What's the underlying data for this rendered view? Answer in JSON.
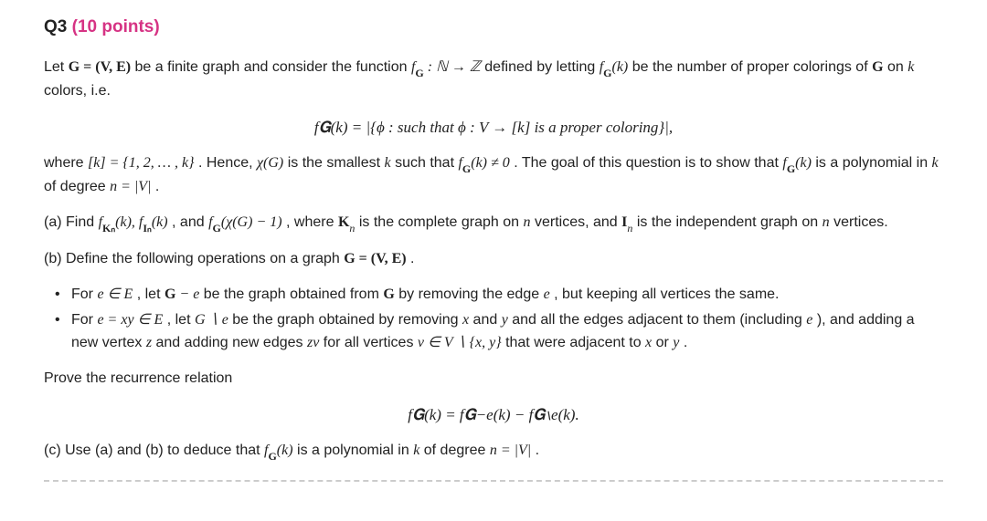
{
  "header": {
    "qnum": "Q3",
    "points": "(10 points)"
  },
  "para1_a": "Let ",
  "para1_math1": "G = (V, E)",
  "para1_b": " be a finite graph and consider the function ",
  "para1_math2": "f",
  "para1_math2_sub": "G",
  "para1_math2_rest": " : ℕ → ℤ",
  "para1_c": " defined by letting ",
  "para1_math3": "f",
  "para1_math3_sub": "G",
  "para1_math3_rest": "(k)",
  "para1_d": " be the number of proper colorings of ",
  "para1_math4": "G",
  "para1_e": " on ",
  "para1_math5": "k",
  "para1_f": " colors, i.e.",
  "display1": "f𝐆(k) = |{ϕ : such that ϕ : V → [k] is a proper coloring}|,",
  "para2_a": "where ",
  "para2_math1": "[k] = {1, 2, … , k}",
  "para2_b": ". Hence, ",
  "para2_math2": "χ(G)",
  "para2_c": " is the smallest ",
  "para2_math3": "k",
  "para2_d": " such that ",
  "para2_math4": "f",
  "para2_math4_sub": "G",
  "para2_math4_rest": "(k) ≠ 0",
  "para2_e": ". The goal of this question is to show that ",
  "para2_math5": "f",
  "para2_math5_sub": "G",
  "para2_math5_rest": "(k)",
  "para2_f": " is a polynomial in ",
  "para2_math6": "k",
  "para2_g": " of degree ",
  "para2_math7": "n = |V|",
  "para2_h": ".",
  "partA_a": "(a) Find ",
  "partA_math1": "f",
  "partA_math1_sub": "Kₙ",
  "partA_math1_rest": "(k), f",
  "partA_math1_sub2": "Iₙ",
  "partA_math1_rest2": "(k)",
  "partA_b": ", and ",
  "partA_math2": "f",
  "partA_math2_sub": "G",
  "partA_math2_rest": "(χ(G) − 1)",
  "partA_c": ", where ",
  "partA_math3": "K",
  "partA_math3_sub": "n",
  "partA_d": " is the complete graph on ",
  "partA_math4": "n",
  "partA_e": " vertices, and ",
  "partA_math5": "I",
  "partA_math5_sub": "n",
  "partA_f": " is the independent graph on ",
  "partA_math6": "n",
  "partA_g": " vertices.",
  "partB_a": "(b) Define the following operations on a graph ",
  "partB_math1": "G = (V, E)",
  "partB_b": ".",
  "bullet1_a": "For ",
  "bullet1_math1": "e ∈ E",
  "bullet1_b": ", let ",
  "bullet1_math2": "G − e",
  "bullet1_c": " be the graph obtained from ",
  "bullet1_math3": "G",
  "bullet1_d": " by removing the edge ",
  "bullet1_math4": "e",
  "bullet1_e": ", but keeping all vertices the same.",
  "bullet2_a": "For ",
  "bullet2_math1": "e = xy ∈ E",
  "bullet2_b": ", let ",
  "bullet2_math2": "G ∖ e",
  "bullet2_c": " be the graph obtained by removing ",
  "bullet2_math3": "x",
  "bullet2_d": " and ",
  "bullet2_math4": "y",
  "bullet2_e": " and all the edges adjacent to them (including ",
  "bullet2_math5": "e",
  "bullet2_f": "), and adding a new vertex ",
  "bullet2_math6": "z",
  "bullet2_g": " and adding new edges ",
  "bullet2_math7": "zv",
  "bullet2_h": " for all vertices ",
  "bullet2_math8": "v ∈ V ∖ {x, y}",
  "bullet2_i": " that were adjacent to ",
  "bullet2_math9": "x",
  "bullet2_j": " or ",
  "bullet2_math10": "y",
  "bullet2_k": ".",
  "prove": "Prove the recurrence relation",
  "display2": "f𝐆(k) = f𝐆−e(k) − f𝐆∖e(k).",
  "partC_a": "(c) Use (a) and (b) to deduce that ",
  "partC_math1": "f",
  "partC_math1_sub": "G",
  "partC_math1_rest": "(k)",
  "partC_b": " is a polynomial in ",
  "partC_math2": "k",
  "partC_c": " of degree ",
  "partC_math3": "n = |V|",
  "partC_d": "."
}
